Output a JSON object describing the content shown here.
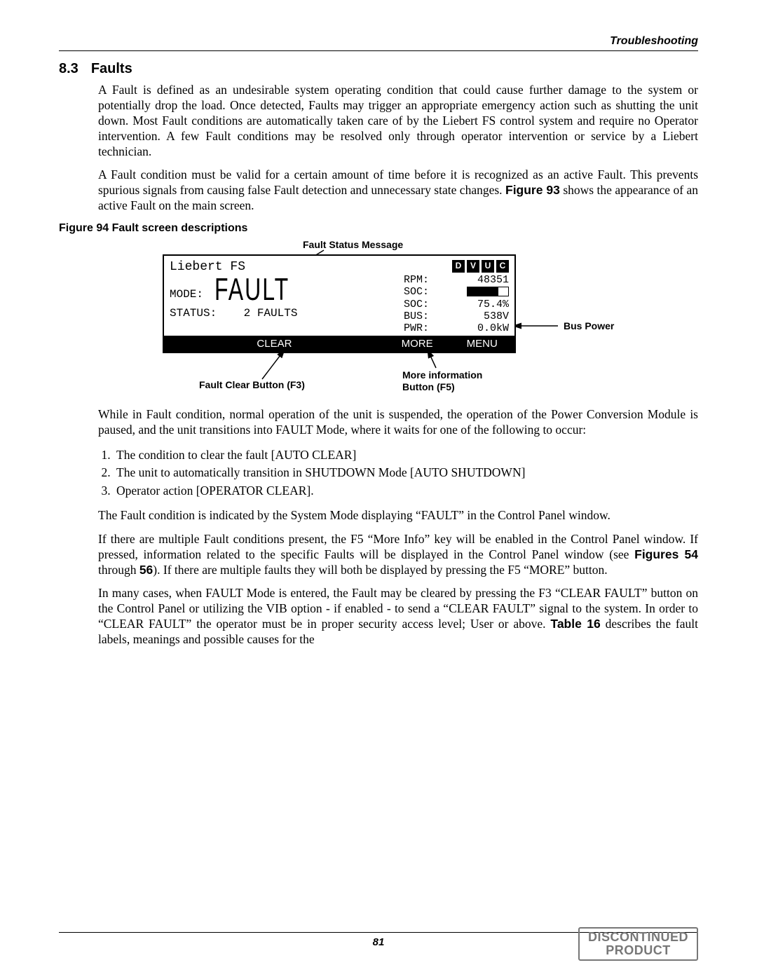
{
  "header": {
    "breadcrumb": "Troubleshooting"
  },
  "section": {
    "num": "8.3",
    "title": "Faults"
  },
  "para1": "A Fault is defined as an undesirable system operating condition that could cause further damage to the system or potentially drop the load. Once detected, Faults may trigger an appropriate emergency action such as shutting the unit down. Most Fault conditions are automatically taken care of by the Liebert FS control system and require no Operator intervention. A few Fault conditions may be resolved only through operator intervention or service by a Liebert technician.",
  "para2a": "A Fault condition must be valid for a certain amount of time before it is recognized as an active Fault. This prevents spurious signals from causing false Fault detection and unnecessary state changes. ",
  "para2b": "Figure 93",
  "para2c": " shows the appearance of an active Fault on the main screen.",
  "fig": {
    "caption": "Figure 94  Fault screen descriptions",
    "callouts": {
      "statusMsg": "Fault Status Message",
      "busPower": "Bus Power",
      "clearBtn": "Fault Clear Button (F3)",
      "moreInfo1": "More information",
      "moreInfo2": "Button (F5)"
    },
    "screen": {
      "title": "Liebert FS",
      "modeLabel": "MODE:",
      "modeValue": "FAULT",
      "statusLabel": "STATUS:",
      "statusValue": "2 FAULTS",
      "pills": [
        "D",
        "V",
        "U",
        "C"
      ],
      "rpmLabel": "RPM:",
      "rpmValue": "48351",
      "socLabel": "SOC:",
      "socPctLabel": "SOC:",
      "socPctValue": "75.4%",
      "socBarPct": 75,
      "busLabel": "BUS:",
      "busValue": "538V",
      "pwrLabel": "PWR:",
      "pwrValue": "0.0kW",
      "buttons": {
        "clear": "CLEAR",
        "more": "MORE",
        "menu": "MENU"
      }
    }
  },
  "para3": "While in Fault condition, normal operation of the unit is suspended, the operation of the Power Conversion Module is paused, and the unit transitions into FAULT Mode, where it waits for one of the following to occur:",
  "list": [
    "The condition to clear the fault [AUTO CLEAR]",
    "The unit to automatically transition in SHUTDOWN Mode [AUTO SHUTDOWN]",
    "Operator action [OPERATOR CLEAR]."
  ],
  "para4": "The Fault condition is indicated by the System Mode displaying “FAULT” in the Control Panel window.",
  "para5a": "If there are multiple Fault conditions present, the F5 “More Info” key will be enabled in the Control Panel window. If pressed, information related to the specific Faults will be displayed in the Control Panel window (see ",
  "para5b": "Figures 54",
  "para5c": " through ",
  "para5d": "56",
  "para5e": "). If there are multiple faults they will both be displayed by pressing the F5 “MORE” button.",
  "para6a": "In many cases, when FAULT Mode is entered, the Fault may be cleared by pressing the F3 “CLEAR FAULT” button on the Control Panel or utilizing the VIB option - if enabled - to send a “CLEAR FAULT” signal to the system. In order to “CLEAR FAULT” the operator must be in proper security access level; User or above. ",
  "para6b": "Table 16",
  "para6c": " describes the fault labels, meanings and possible causes for the",
  "footer": {
    "page": "81",
    "stamp1": "DISCONTINUED",
    "stamp2": "PRODUCT"
  },
  "style": {
    "arrowColor": "#000000",
    "screenBorder": "#000000"
  }
}
